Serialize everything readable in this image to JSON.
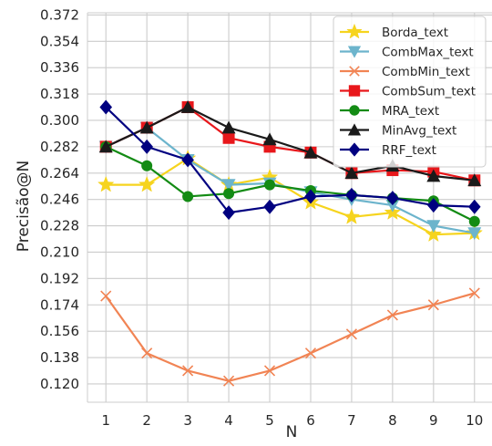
{
  "chart_data": {
    "type": "line",
    "xlabel": "N",
    "ylabel": "Precisão@N",
    "x": [
      1,
      2,
      3,
      4,
      5,
      6,
      7,
      8,
      9,
      10
    ],
    "xlim": [
      0.55,
      10.45
    ],
    "ylim": [
      0.1075,
      0.3735
    ],
    "yticks": [
      0.12,
      0.138,
      0.156,
      0.174,
      0.192,
      0.21,
      0.228,
      0.246,
      0.264,
      0.282,
      0.3,
      0.318,
      0.336,
      0.354,
      0.372
    ],
    "ytick_labels": [
      "0.120",
      "0.138",
      "0.156",
      "0.174",
      "0.192",
      "0.210",
      "0.228",
      "0.246",
      "0.264",
      "0.282",
      "0.300",
      "0.318",
      "0.336",
      "0.354",
      "0.372"
    ],
    "grid": true,
    "legend_position": "top-right",
    "series": [
      {
        "name": "Borda_text",
        "color": "#f6d41e",
        "marker": "star",
        "values": [
          0.256,
          0.256,
          0.274,
          0.256,
          0.261,
          0.244,
          0.234,
          0.237,
          0.222,
          0.223
        ]
      },
      {
        "name": "CombMax_text",
        "color": "#6cb4cc",
        "marker": "triangle-down",
        "values": [
          0.282,
          0.295,
          0.273,
          0.256,
          0.257,
          0.251,
          0.246,
          0.242,
          0.228,
          0.223
        ]
      },
      {
        "name": "CombMin_text",
        "color": "#f18454",
        "marker": "x",
        "values": [
          0.18,
          0.141,
          0.129,
          0.122,
          0.129,
          0.141,
          0.154,
          0.167,
          0.174,
          0.182
        ]
      },
      {
        "name": "CombSum_text",
        "color": "#e8171b",
        "marker": "square",
        "values": [
          0.282,
          0.295,
          0.309,
          0.288,
          0.282,
          0.278,
          0.264,
          0.266,
          0.265,
          0.259
        ]
      },
      {
        "name": "MRA_text",
        "color": "#138b14",
        "marker": "circle",
        "values": [
          0.282,
          0.269,
          0.248,
          0.25,
          0.256,
          0.252,
          0.249,
          0.247,
          0.245,
          0.231
        ]
      },
      {
        "name": "MinAvg_text",
        "color": "#1a1a1a",
        "marker": "triangle-up",
        "values": [
          0.282,
          0.295,
          0.309,
          0.295,
          0.287,
          0.278,
          0.264,
          0.269,
          0.262,
          0.259
        ]
      },
      {
        "name": "RRF_text",
        "color": "#000080",
        "marker": "diamond",
        "values": [
          0.309,
          0.282,
          0.273,
          0.237,
          0.241,
          0.248,
          0.249,
          0.247,
          0.242,
          0.241
        ]
      }
    ]
  }
}
